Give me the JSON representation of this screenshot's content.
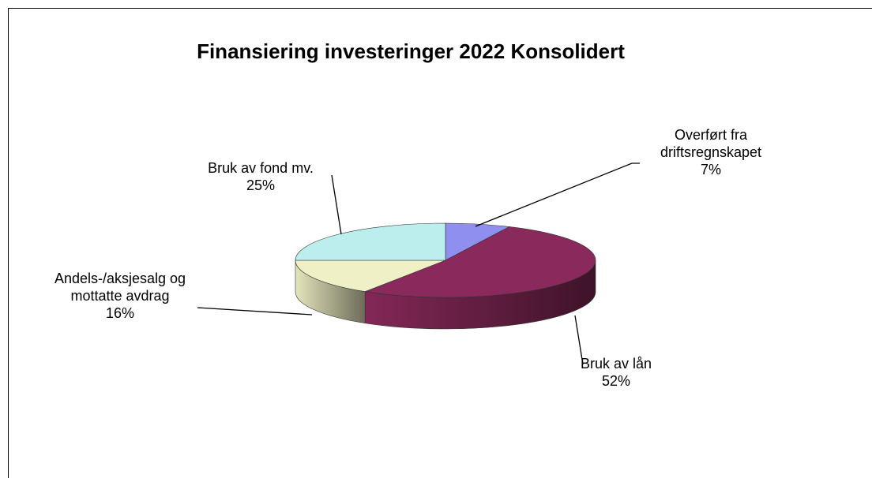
{
  "chart_data": {
    "type": "pie",
    "title": "Finansiering investeringer 2022 Konsolidert",
    "categories": [
      "Overført fra driftsregnskapet",
      "Bruk av lån",
      "Andels-/aksjesalg og mottatte avdrag",
      "Bruk av fond mv."
    ],
    "values": [
      7,
      52,
      16,
      25
    ],
    "value_labels": [
      "7%",
      "52%",
      "16%",
      "25%"
    ],
    "colors": [
      "#8f8ff0",
      "#8a2a5c",
      "#f0f0c6",
      "#bdeeee"
    ]
  }
}
